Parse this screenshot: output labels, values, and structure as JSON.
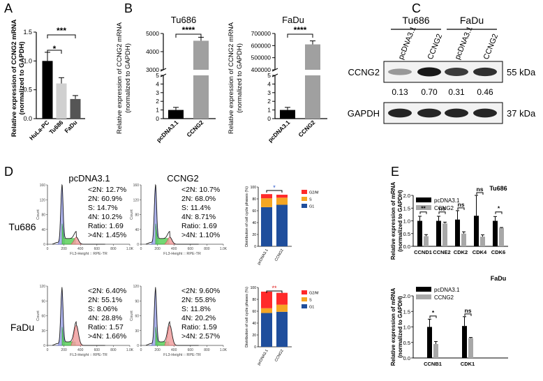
{
  "panel_letters": [
    "A",
    "B",
    "C",
    "D",
    "E"
  ],
  "chart_data": [
    {
      "panel": "A",
      "type": "bar",
      "categories": [
        "HuLa-PC",
        "Tu686",
        "FaDu"
      ],
      "values": [
        1.0,
        0.61,
        0.34
      ],
      "errors": [
        0.15,
        0.1,
        0.06
      ],
      "colors": [
        "#000000",
        "#d0d0d0",
        "#555555"
      ],
      "ylabel": [
        "Relative expression of  CCNG2 mRNA",
        "(normalized to GAPDH)"
      ],
      "ylim": [
        0,
        1.5
      ],
      "yticks": [
        "0.0",
        "0.5",
        "1.0",
        "1.5"
      ],
      "significance": [
        "*",
        "***"
      ]
    },
    {
      "panel": "B-Tu686",
      "type": "bar",
      "title": "Tu686",
      "categories": [
        "pcDNA3.1",
        "CCNG2"
      ],
      "values": [
        1.0,
        4600
      ],
      "colors": [
        "#000000",
        "#a0a0a0"
      ],
      "ylabel": [
        "Relative expression of  CCNG2 mRNA",
        "(normalized to GAPDH)"
      ],
      "yticks_lower": [
        "0",
        "1",
        "2",
        "3",
        "4",
        "5"
      ],
      "yticks_upper": [
        "3000",
        "4000",
        "5000"
      ],
      "significance": "****"
    },
    {
      "panel": "B-FaDu",
      "type": "bar",
      "title": "FaDu",
      "categories": [
        "pcDNA3.1",
        "CCNG2"
      ],
      "values": [
        1.0,
        610000
      ],
      "colors": [
        "#000000",
        "#a0a0a0"
      ],
      "ylabel": [
        "Relative expression of  CCNG2 mRNA",
        "(normalized to GAPDH)"
      ],
      "yticks_lower": [
        "0",
        "1",
        "2",
        "3",
        "4",
        "5"
      ],
      "yticks_upper": [
        "400000",
        "500000",
        "600000",
        "700000"
      ],
      "significance": "****"
    },
    {
      "panel": "C",
      "type": "table",
      "groups": [
        "Tu686",
        "FaDu"
      ],
      "lanes": [
        "pcDNA3.1",
        "CCNG2",
        "pcDNA3.1",
        "CCNG2"
      ],
      "rows": [
        {
          "label": "CCNG2",
          "size": "55 kDa",
          "quant": [
            "0.13",
            "0.70",
            "0.31",
            "0.46"
          ],
          "intensity": [
            0.45,
            1.0,
            0.85,
            0.9
          ]
        },
        {
          "label": "GAPDH",
          "size": "37 kDa",
          "intensity": [
            0.95,
            0.95,
            0.95,
            0.95
          ]
        }
      ]
    },
    {
      "panel": "D",
      "type": "area",
      "columns": [
        "pcDNA3.1",
        "CCNG2"
      ],
      "row_labels": [
        "Tu686",
        "FaDu"
      ],
      "x_label": "FL3-Height :: RPE-TR",
      "y_label": "Count",
      "x_ticks": [
        "0",
        "200",
        "400",
        "600",
        "800",
        "1.0K"
      ],
      "y_ticks": {
        "Tu686": [
          "0",
          "40",
          "80",
          "120",
          "160"
        ],
        "FaDu": [
          "0",
          "30",
          "60",
          "90",
          "120"
        ]
      },
      "stats": {
        "Tu686": {
          "pcDNA3.1": [
            "<2N: 12.7%",
            "2N: 60.9%",
            "S: 14.7%",
            "4N: 10.2%",
            "Ratio: 1.69",
            ">4N: 1.45%"
          ],
          "CCNG2": [
            "<2N: 10.7%",
            "2N: 68.0%",
            "S: 11.4%",
            "4N: 8.71%",
            "Ratio: 1.69",
            ">4N: 1.10%"
          ]
        },
        "FaDu": {
          "pcDNA3.1": [
            "<2N: 6.40%",
            "2N: 55.1%",
            "S: 8.06%",
            "4N: 28.8%",
            "Ratio: 1.57",
            ">4N: 1.66%"
          ],
          "CCNG2": [
            "<2N: 9.60%",
            "2N: 55.8%",
            "S: 11.8%",
            "4N: 20.2%",
            "Ratio: 1.59",
            ">4N: 2.57%"
          ]
        }
      }
    },
    {
      "panel": "D-stacked",
      "type": "bar",
      "categories": [
        "pcDNA3.1",
        "CCNG2"
      ],
      "ylabel": "Distribution of cell cycle phases (%)",
      "yticks": [
        "0",
        "20",
        "40",
        "60",
        "80",
        "100"
      ],
      "legend": [
        "G2/M",
        "S",
        "G1"
      ],
      "legend_colors": [
        "#ff2a2a",
        "#f5a623",
        "#1f4e9c"
      ],
      "series": {
        "Tu686": {
          "G1": [
            66,
            70
          ],
          "S": [
            15,
            12
          ],
          "G2M": [
            7,
            5
          ],
          "significance": "*"
        },
        "FaDu": {
          "G1": [
            57,
            59
          ],
          "S": [
            8,
            12
          ],
          "G2M": [
            28,
            20
          ],
          "significance": "**"
        }
      }
    },
    {
      "panel": "E-Tu686",
      "type": "bar",
      "title": "Tu686",
      "categories": [
        "CCND1",
        "CCNE2",
        "CDK2",
        "CDK4",
        "CDK6"
      ],
      "series": [
        {
          "name": "pcDNA3.1",
          "values": [
            1.0,
            1.0,
            1.05,
            1.2,
            1.0
          ],
          "errors": [
            0.18,
            0.18,
            0.35,
            0.8,
            0.17
          ],
          "color": "#000000"
        },
        {
          "name": "CCNG2",
          "values": [
            0.4,
            0.9,
            0.5,
            0.38,
            0.72
          ],
          "errors": [
            0.06,
            0.05,
            0.07,
            0.07,
            0.02
          ],
          "color": "#a8a8a8"
        }
      ],
      "significance": [
        "**",
        "ns",
        "ns",
        "ns",
        "*"
      ],
      "ylabel": [
        "Relative expression of  mRNA",
        "(normalized to GAPDH)"
      ],
      "ylim": [
        0,
        2.0
      ],
      "yticks": [
        "0.0",
        "0.5",
        "1.0",
        "1.5",
        "2.0"
      ]
    },
    {
      "panel": "E-FaDu",
      "type": "bar",
      "title": "FaDu",
      "categories": [
        "CCNB1",
        "CDK1"
      ],
      "series": [
        {
          "name": "pcDNA3.1",
          "values": [
            1.0,
            1.03
          ],
          "errors": [
            0.25,
            0.3
          ],
          "color": "#000000"
        },
        {
          "name": "CCNG2",
          "values": [
            0.45,
            0.64
          ],
          "errors": [
            0.08,
            0.02
          ],
          "color": "#a8a8a8"
        }
      ],
      "significance": [
        "*",
        "ns"
      ],
      "ylabel": [
        "Relative expression of  mRNA",
        "(normalized to GAPDH)"
      ],
      "ylim": [
        0,
        2.0
      ],
      "yticks": [
        "0.0",
        "0.5",
        "1.0",
        "1.5",
        "2.0"
      ]
    }
  ]
}
